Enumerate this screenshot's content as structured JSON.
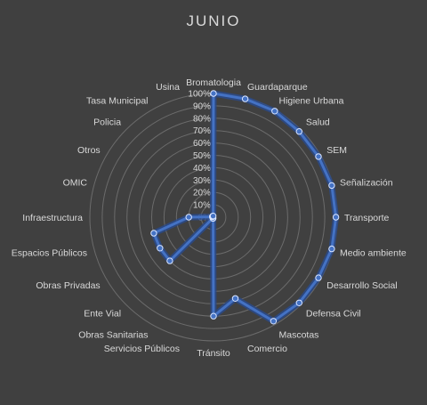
{
  "chart_data": {
    "type": "radar",
    "title": "JUNIO",
    "categories": [
      "Bromatologia",
      "Guardaparque",
      "Higiene Urbana",
      "Salud",
      "SEM",
      "Señalización",
      "Transporte",
      "Medio ambiente",
      "Desarrollo Social",
      "Defensa Civil",
      "Mascotas",
      "Comercio",
      "Tránsito",
      "Servicios Públicos",
      "Obras Sanitarias",
      "Ente Vial",
      "Obras Privadas",
      "Espacios Públicos",
      "Infraestructura",
      "OMIC",
      "Otros",
      "Policia",
      "Tasa Municipal",
      "Usina"
    ],
    "series": [
      {
        "values": [
          100,
          99,
          99,
          98,
          98,
          99,
          99,
          99,
          98,
          98,
          97,
          68,
          80,
          1,
          1,
          50,
          50,
          50,
          20,
          1,
          1,
          1,
          1,
          1
        ]
      }
    ],
    "radial_ticks": [
      "0%",
      "10%",
      "20%",
      "30%",
      "40%",
      "50%",
      "60%",
      "70%",
      "80%",
      "90%",
      "100%"
    ],
    "rmax": 100,
    "grid": true,
    "legend": "none",
    "colors": {
      "background": "#404040",
      "grid": "#6b6b6b",
      "line": "#4472c4",
      "line_glow": "#2a4a8a",
      "text": "#d9d9d9"
    }
  }
}
